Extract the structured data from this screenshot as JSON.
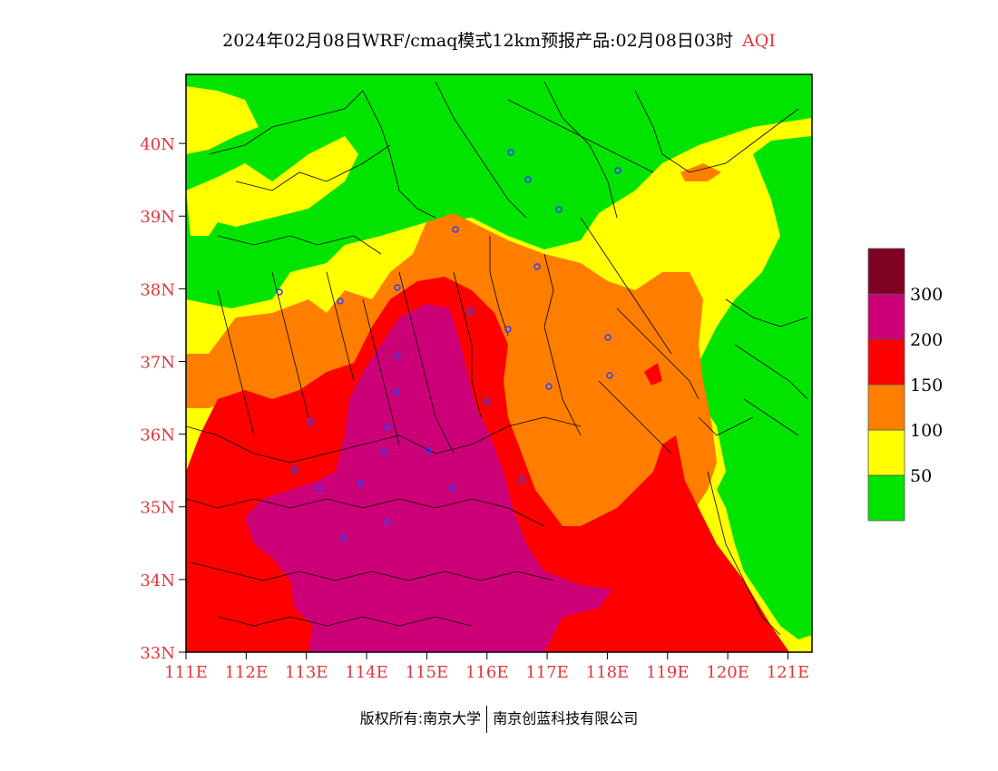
{
  "title": {
    "main": "2024年02月08日WRF/cmaq模式12km预报产品:02月08日03时",
    "highlight": "AQI"
  },
  "map": {
    "lat_ticks": [
      "40N",
      "39N",
      "38N",
      "37N",
      "36N",
      "35N",
      "34N",
      "33N"
    ],
    "lon_ticks": [
      "111E",
      "112E",
      "113E",
      "114E",
      "115E",
      "116E",
      "117E",
      "118E",
      "119E",
      "120E",
      "121E"
    ],
    "extent": {
      "lon_min": 111,
      "lon_max": 121.4,
      "lat_min": 33,
      "lat_max": 40.95
    },
    "tick_color": "#e0383b"
  },
  "legend": {
    "title": "AQI",
    "colors": [
      "#00e400",
      "#ffff00",
      "#ff7e00",
      "#ff0000",
      "#cc0077",
      "#7e0023"
    ],
    "labels": [
      "50",
      "100",
      "150",
      "200",
      "300"
    ]
  },
  "footer": {
    "left": "版权所有:南京大学",
    "right": "南京创蓝科技有限公司"
  }
}
